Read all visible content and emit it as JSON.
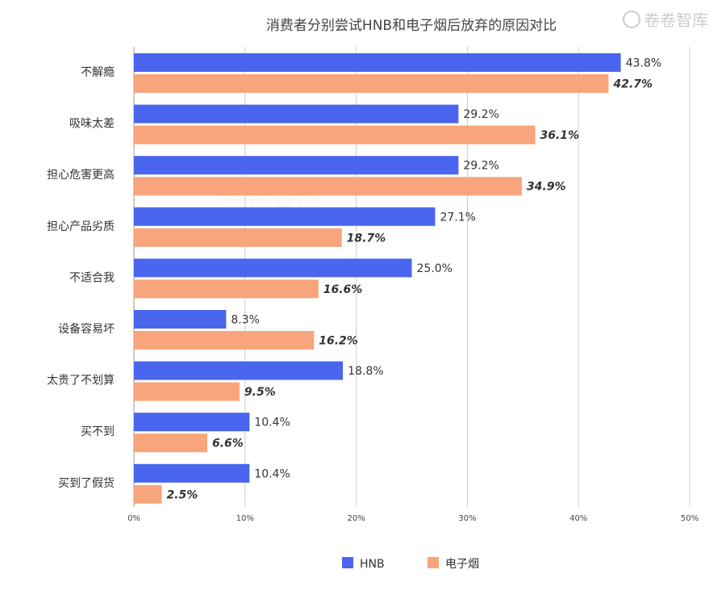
{
  "chart_data": {
    "type": "bar",
    "orientation": "horizontal",
    "title": "消费者分别尝试HNB和电子烟后放弃的原因对比",
    "categories": [
      "不解瘾",
      "吸味太差",
      "担心危害更高",
      "担心产品劣质",
      "不适合我",
      "设备容易坏",
      "太贵了不划算",
      "买不到",
      "买到了假货"
    ],
    "series": [
      {
        "name": "HNB",
        "color": "#4a66ee",
        "values": [
          43.8,
          29.2,
          29.2,
          27.1,
          25.0,
          8.3,
          18.8,
          10.4,
          10.4
        ],
        "labels": [
          "43.8%",
          "29.2%",
          "29.2%",
          "27.1%",
          "25.0%",
          "8.3%",
          "18.8%",
          "10.4%",
          "10.4%"
        ]
      },
      {
        "name": "电子烟",
        "color": "#f8a47c",
        "values": [
          42.7,
          36.1,
          34.9,
          18.7,
          16.6,
          16.2,
          9.5,
          6.6,
          2.5
        ],
        "labels": [
          "42.7%",
          "36.1%",
          "34.9%",
          "18.7%",
          "16.6%",
          "16.2%",
          "9.5%",
          "6.6%",
          "2.5%"
        ]
      }
    ],
    "xlim": [
      0,
      50
    ],
    "xticks": [
      0,
      10,
      20,
      30,
      40,
      50
    ],
    "xtick_labels": [
      "0%",
      "10%",
      "20%",
      "30%",
      "40%",
      "50%"
    ],
    "grid": true,
    "legend_position": "bottom-center"
  },
  "watermark": {
    "text": "卷卷智库"
  }
}
